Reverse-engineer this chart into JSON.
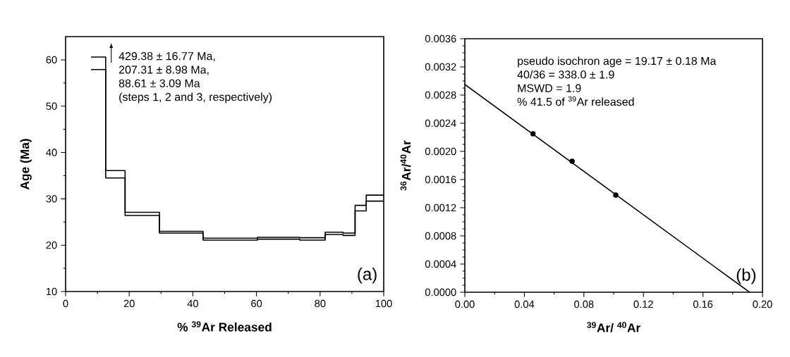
{
  "chart_data": [
    {
      "type": "step",
      "xlabel": "% $^{39}$Ar Released",
      "ylabel": "Age (Ma)",
      "xlim": [
        0,
        100
      ],
      "ylim": [
        10,
        65
      ],
      "xticks": [
        0,
        {
          "value": 10,
          "label": null
        },
        20,
        {
          "value": 30,
          "label": null
        },
        40,
        {
          "value": 50,
          "label": null
        },
        60,
        {
          "value": 70,
          "label": null
        },
        80,
        {
          "value": 90,
          "label": null
        },
        100
      ],
      "yticks": [
        10,
        {
          "value": 15,
          "label": null
        },
        20,
        {
          "value": 25,
          "label": null
        },
        30,
        {
          "value": 35,
          "label": null
        },
        40,
        {
          "value": 45,
          "label": null
        },
        50,
        {
          "value": 55,
          "label": null
        },
        60
      ],
      "series": [
        {
          "color": "#000000",
          "x": [
            8.0,
            12.6,
            18.7,
            29.5,
            43.2,
            60.3,
            73.6,
            81.6,
            87.2,
            91.0,
            94.5,
            100
          ],
          "values": [
            60.6,
            36.1,
            27.1,
            23.0,
            21.5,
            21.7,
            21.6,
            22.8,
            22.6,
            28.6,
            30.8,
            30.8
          ]
        },
        {
          "color": "#000000",
          "x": [
            8.0,
            12.6,
            18.7,
            29.5,
            43.2,
            60.3,
            73.6,
            81.6,
            87.2,
            91.0,
            94.5,
            100
          ],
          "values": [
            57.9,
            34.5,
            26.4,
            22.6,
            21.1,
            21.3,
            21.1,
            22.3,
            22.1,
            27.4,
            29.5,
            29.5
          ]
        }
      ],
      "annotations": [
        "429.38 ± 16.77 Ma,",
        "207.31 ± 8.98 Ma,",
        "88.61 ± 3.09 Ma",
        "(steps 1, 2 and 3, respectively)",
        "(a)"
      ]
    },
    {
      "type": "scatter",
      "xlabel": "$^{39}$Ar/ $^{40}$Ar",
      "ylabel": "$^{36}$Ar/$^{40}$Ar",
      "xlim": [
        0,
        0.2
      ],
      "ylim": [
        0,
        0.0036
      ],
      "xticks": [
        {
          "value": 0,
          "label": "0.00"
        },
        {
          "value": 0.02,
          "label": null
        },
        {
          "value": 0.04,
          "label": "0.04"
        },
        {
          "value": 0.06,
          "label": null
        },
        {
          "value": 0.08,
          "label": "0.08"
        },
        {
          "value": 0.1,
          "label": null
        },
        {
          "value": 0.12,
          "label": "0.12"
        },
        {
          "value": 0.14,
          "label": null
        },
        {
          "value": 0.16,
          "label": "0.16"
        },
        {
          "value": 0.18,
          "label": null
        },
        {
          "value": 0.2,
          "label": "0.20"
        }
      ],
      "yticks": [
        {
          "value": 0,
          "label": "0.0000"
        },
        {
          "value": 0.0001,
          "label": null
        },
        {
          "value": 0.0002,
          "label": null
        },
        {
          "value": 0.0003,
          "label": null
        },
        {
          "value": 0.0004,
          "label": "0.0004"
        },
        {
          "value": 0.0005,
          "label": null
        },
        {
          "value": 0.0006,
          "label": null
        },
        {
          "value": 0.0007,
          "label": null
        },
        {
          "value": 0.0008,
          "label": "0.0008"
        },
        {
          "value": 0.0009,
          "label": null
        },
        {
          "value": 0.001,
          "label": null
        },
        {
          "value": 0.0011,
          "label": null
        },
        {
          "value": 0.0012,
          "label": "0.0012"
        },
        {
          "value": 0.0013,
          "label": null
        },
        {
          "value": 0.0014,
          "label": null
        },
        {
          "value": 0.0015,
          "label": null
        },
        {
          "value": 0.0016,
          "label": "0.0016"
        },
        {
          "value": 0.0017,
          "label": null
        },
        {
          "value": 0.0018,
          "label": null
        },
        {
          "value": 0.0019,
          "label": null
        },
        {
          "value": 0.002,
          "label": "0.0020"
        },
        {
          "value": 0.0021,
          "label": null
        },
        {
          "value": 0.0022,
          "label": null
        },
        {
          "value": 0.0023,
          "label": null
        },
        {
          "value": 0.0024,
          "label": "0.0024"
        },
        {
          "value": 0.0025,
          "label": null
        },
        {
          "value": 0.0026,
          "label": null
        },
        {
          "value": 0.0027,
          "label": null
        },
        {
          "value": 0.0028,
          "label": "0.0028"
        },
        {
          "value": 0.0029,
          "label": null
        },
        {
          "value": 0.003,
          "label": null
        },
        {
          "value": 0.0031,
          "label": null
        },
        {
          "value": 0.0032,
          "label": "0.0032"
        },
        {
          "value": 0.0033,
          "label": null
        },
        {
          "value": 0.0034,
          "label": null
        },
        {
          "value": 0.0035,
          "label": null
        },
        {
          "value": 0.0036,
          "label": "0.0036"
        }
      ],
      "series": [
        {
          "type": "scatter",
          "marker": "circle",
          "color": "#000000",
          "x": [
            0.0458,
            0.0721,
            0.1014
          ],
          "values": [
            0.00225,
            0.00186,
            0.00138
          ]
        },
        {
          "type": "line",
          "color": "#000000",
          "x": [
            0,
            0.1913
          ],
          "values": [
            0.00295,
            0
          ]
        }
      ],
      "annotations": [
        "pseudo isochron age = 19.17  ±  0.18 Ma",
        "40/36 = 338.0 ± 1.9",
        "MSWD = 1.9",
        "% 41.5 of $^{39}$Ar released",
        "(b)"
      ]
    }
  ]
}
